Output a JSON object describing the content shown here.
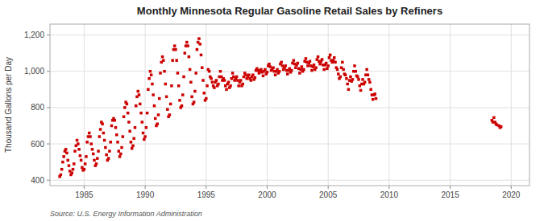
{
  "chart_data": {
    "type": "scatter",
    "title": "Monthly Minnesota Regular Gasoline Retail Sales by Refiners",
    "y_label": "Thousand Gallons per Day",
    "annotations": [
      "Source: U.S. Energy Information Administration"
    ],
    "color": "#cc0000",
    "marker": "square",
    "grid": true,
    "xlim": [
      1982.2,
      2021.5
    ],
    "xticks": [
      1985,
      1990,
      1995,
      2000,
      2005,
      2010,
      2015,
      2020
    ],
    "ylim": [
      370,
      1260
    ],
    "yticks": [
      400,
      600,
      800,
      {
        "value": 1000,
        "label": "1,000"
      },
      {
        "value": 1200,
        "label": "1,200"
      }
    ],
    "x": [
      1983.0,
      1983.083,
      1983.167,
      1983.25,
      1983.333,
      1983.417,
      1983.5,
      1983.583,
      1983.667,
      1983.75,
      1983.833,
      1983.917,
      1984.0,
      1984.083,
      1984.167,
      1984.25,
      1984.333,
      1984.417,
      1984.5,
      1984.583,
      1984.667,
      1984.75,
      1984.833,
      1984.917,
      1985.0,
      1985.083,
      1985.167,
      1985.25,
      1985.333,
      1985.417,
      1985.5,
      1985.583,
      1985.667,
      1985.75,
      1985.833,
      1985.917,
      1986.0,
      1986.083,
      1986.167,
      1986.25,
      1986.333,
      1986.417,
      1986.5,
      1986.583,
      1986.667,
      1986.75,
      1986.833,
      1986.917,
      1987.0,
      1987.083,
      1987.167,
      1987.25,
      1987.333,
      1987.417,
      1987.5,
      1987.583,
      1987.667,
      1987.75,
      1987.833,
      1987.917,
      1988.0,
      1988.083,
      1988.167,
      1988.25,
      1988.333,
      1988.417,
      1988.5,
      1988.583,
      1988.667,
      1988.75,
      1988.833,
      1988.917,
      1989.0,
      1989.083,
      1989.167,
      1989.25,
      1989.333,
      1989.417,
      1989.5,
      1989.583,
      1989.667,
      1989.75,
      1989.833,
      1989.917,
      1990.0,
      1990.083,
      1990.167,
      1990.25,
      1990.333,
      1990.417,
      1990.5,
      1990.583,
      1990.667,
      1990.75,
      1990.833,
      1990.917,
      1991.0,
      1991.083,
      1991.167,
      1991.25,
      1991.333,
      1991.417,
      1991.5,
      1991.583,
      1991.667,
      1991.75,
      1991.833,
      1991.917,
      1992.0,
      1992.083,
      1992.167,
      1992.25,
      1992.333,
      1992.417,
      1992.5,
      1992.583,
      1992.667,
      1992.75,
      1992.833,
      1992.917,
      1993.0,
      1993.083,
      1993.167,
      1993.25,
      1993.333,
      1993.417,
      1993.5,
      1993.583,
      1993.667,
      1993.75,
      1993.833,
      1993.917,
      1994.0,
      1994.083,
      1994.167,
      1994.25,
      1994.333,
      1994.417,
      1994.5,
      1994.583,
      1994.667,
      1994.75,
      1994.833,
      1994.917,
      1995.0,
      1995.083,
      1995.167,
      1995.25,
      1995.333,
      1995.417,
      1995.5,
      1995.583,
      1995.667,
      1995.75,
      1995.833,
      1995.917,
      1996.0,
      1996.083,
      1996.167,
      1996.25,
      1996.333,
      1996.417,
      1996.5,
      1996.583,
      1996.667,
      1996.75,
      1996.833,
      1996.917,
      1997.0,
      1997.083,
      1997.167,
      1997.25,
      1997.333,
      1997.417,
      1997.5,
      1997.583,
      1997.667,
      1997.75,
      1997.833,
      1997.917,
      1998.0,
      1998.083,
      1998.167,
      1998.25,
      1998.333,
      1998.417,
      1998.5,
      1998.583,
      1998.667,
      1998.75,
      1998.833,
      1998.917,
      1999.0,
      1999.083,
      1999.167,
      1999.25,
      1999.333,
      1999.417,
      1999.5,
      1999.583,
      1999.667,
      1999.75,
      1999.833,
      1999.917,
      2000.0,
      2000.083,
      2000.167,
      2000.25,
      2000.333,
      2000.417,
      2000.5,
      2000.583,
      2000.667,
      2000.75,
      2000.833,
      2000.917,
      2001.0,
      2001.083,
      2001.167,
      2001.25,
      2001.333,
      2001.417,
      2001.5,
      2001.583,
      2001.667,
      2001.75,
      2001.833,
      2001.917,
      2002.0,
      2002.083,
      2002.167,
      2002.25,
      2002.333,
      2002.417,
      2002.5,
      2002.583,
      2002.667,
      2002.75,
      2002.833,
      2002.917,
      2003.0,
      2003.083,
      2003.167,
      2003.25,
      2003.333,
      2003.417,
      2003.5,
      2003.583,
      2003.667,
      2003.75,
      2003.833,
      2003.917,
      2004.0,
      2004.083,
      2004.167,
      2004.25,
      2004.333,
      2004.417,
      2004.5,
      2004.583,
      2004.667,
      2004.75,
      2004.833,
      2004.917,
      2005.0,
      2005.083,
      2005.167,
      2005.25,
      2005.333,
      2005.417,
      2005.5,
      2005.583,
      2005.667,
      2005.75,
      2005.833,
      2005.917,
      2006.0,
      2006.083,
      2006.167,
      2006.25,
      2006.333,
      2006.417,
      2006.5,
      2006.583,
      2006.667,
      2006.75,
      2006.833,
      2006.917,
      2007.0,
      2007.083,
      2007.167,
      2007.25,
      2007.333,
      2007.417,
      2007.5,
      2007.583,
      2007.667,
      2007.75,
      2007.833,
      2007.917,
      2008.0,
      2008.083,
      2008.167,
      2008.25,
      2008.333,
      2008.417,
      2008.5,
      2008.583,
      2008.667,
      2008.75,
      2008.833,
      2008.917,
      2018.417,
      2018.5,
      2018.583,
      2018.667,
      2018.75,
      2018.833,
      2019.0,
      2019.083,
      2019.167
    ],
    "values": [
      420,
      430,
      460,
      500,
      530,
      560,
      570,
      550,
      510,
      480,
      450,
      430,
      440,
      460,
      490,
      560,
      590,
      620,
      600,
      570,
      535,
      510,
      470,
      455,
      460,
      490,
      530,
      610,
      640,
      660,
      640,
      600,
      570,
      545,
      510,
      480,
      490,
      520,
      560,
      640,
      680,
      720,
      710,
      660,
      620,
      580,
      540,
      510,
      520,
      560,
      610,
      700,
      730,
      740,
      730,
      690,
      650,
      610,
      560,
      530,
      545,
      580,
      640,
      750,
      800,
      830,
      820,
      770,
      720,
      670,
      610,
      575,
      590,
      630,
      690,
      810,
      860,
      890,
      870,
      820,
      770,
      720,
      660,
      625,
      640,
      690,
      770,
      900,
      960,
      1000,
      980,
      930,
      870,
      810,
      740,
      700,
      710,
      760,
      850,
      990,
      1050,
      1080,
      1060,
      1000,
      930,
      860,
      790,
      750,
      760,
      820,
      920,
      1060,
      1120,
      1140,
      1120,
      1060,
      990,
      920,
      840,
      800,
      810,
      870,
      970,
      1100,
      1140,
      1160,
      1140,
      1080,
      1010,
      940,
      860,
      820,
      830,
      890,
      990,
      1120,
      1160,
      1180,
      1150,
      1090,
      1020,
      950,
      880,
      840,
      850,
      920,
      1010,
      1000,
      970,
      960,
      940,
      920,
      910,
      940,
      950,
      920,
      930,
      970,
      1000,
      970,
      950,
      960,
      950,
      920,
      900,
      930,
      940,
      910,
      920,
      960,
      990,
      970,
      950,
      960,
      970,
      950,
      920,
      940,
      950,
      920,
      930,
      970,
      990,
      980,
      960,
      970,
      980,
      960,
      950,
      970,
      980,
      955,
      965,
      1005,
      1015,
      1005,
      990,
      1000,
      1010,
      995,
      975,
      1000,
      1010,
      985,
      995,
      1030,
      1040,
      1025,
      1005,
      1010,
      1020,
      1000,
      980,
      1000,
      1010,
      990,
      1000,
      1040,
      1050,
      1030,
      1010,
      1020,
      1030,
      1005,
      985,
      1005,
      1015,
      995,
      1005,
      1045,
      1060,
      1040,
      1020,
      1035,
      1045,
      1015,
      990,
      1010,
      1025,
      1000,
      1010,
      1055,
      1070,
      1050,
      1030,
      1045,
      1055,
      1030,
      1005,
      1025,
      1035,
      1010,
      1020,
      1065,
      1080,
      1055,
      1040,
      1055,
      1065,
      1035,
      1010,
      1035,
      1045,
      1015,
      1030,
      1075,
      1090,
      1060,
      1050,
      1060,
      1075,
      1050,
      1020,
      1010,
      985,
      960,
      970,
      1020,
      1050,
      1010,
      985,
      980,
      960,
      930,
      900,
      950,
      970,
      945,
      955,
      1000,
      1030,
      1000,
      975,
      970,
      955,
      920,
      895,
      930,
      955,
      930,
      940,
      980,
      1010,
      980,
      955,
      940,
      900,
      870,
      845,
      870,
      875,
      850,
      730,
      720,
      745,
      720,
      710,
      705,
      700,
      690,
      695
    ]
  }
}
